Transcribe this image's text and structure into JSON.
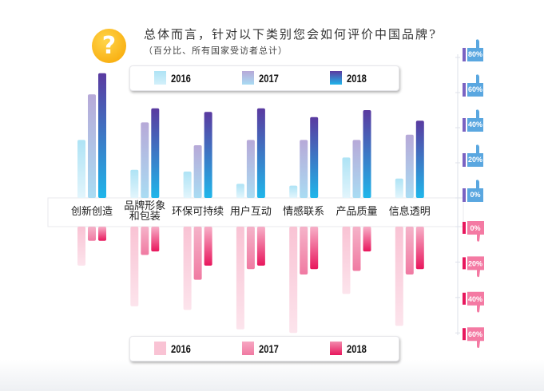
{
  "title": "总体而言，针对以下类别您会如何评价中国品牌?",
  "subtitle": "（百分比、所有国家受访者总计）",
  "chart_data": [
    {
      "type": "bar",
      "categories": [
        "创新创造",
        "品牌形象和包装",
        "环保可持续",
        "用户互动",
        "情感联系",
        "产品质量",
        "信息透明"
      ],
      "category_lines": [
        [
          "创新创造"
        ],
        [
          "品牌形象",
          "和包装"
        ],
        [
          "环保可持续"
        ],
        [
          "用户互动"
        ],
        [
          "情感联系"
        ],
        [
          "产品质量"
        ],
        [
          "信息透明"
        ]
      ],
      "series": [
        {
          "name": "2016",
          "values": [
            33,
            16,
            15,
            8,
            7,
            23,
            11
          ],
          "color": "#aee3f5"
        },
        {
          "name": "2017",
          "values": [
            59,
            43,
            30,
            33,
            33,
            33,
            36
          ],
          "color": "#b7a9d8"
        },
        {
          "name": "2018",
          "values": [
            71,
            51,
            49,
            51,
            46,
            50,
            44
          ],
          "color": "#5a3aa0"
        }
      ],
      "ylim": [
        0,
        80
      ],
      "yticks": [
        "0%",
        "20%",
        "40%",
        "60%",
        "80%"
      ],
      "tick_icon": "thumbs-up-icon",
      "legend_position": "top"
    },
    {
      "type": "bar",
      "direction": "downward",
      "categories": [
        "创新创造",
        "品牌形象和包装",
        "环保可持续",
        "用户互动",
        "情感联系",
        "产品质量",
        "信息透明"
      ],
      "series": [
        {
          "name": "2016",
          "values": [
            22,
            45,
            47,
            58,
            60,
            38,
            56
          ],
          "color": "#f9c3d4"
        },
        {
          "name": "2017",
          "values": [
            8,
            16,
            30,
            24,
            27,
            25,
            27
          ],
          "color": "#f28bad"
        },
        {
          "name": "2018",
          "values": [
            8,
            14,
            22,
            22,
            24,
            14,
            24
          ],
          "color": "#e8175d"
        }
      ],
      "ylim": [
        0,
        60
      ],
      "yticks": [
        "0%",
        "20%",
        "40%",
        "60%"
      ],
      "tick_icon": "thumbs-down-icon",
      "legend_position": "bottom"
    }
  ]
}
